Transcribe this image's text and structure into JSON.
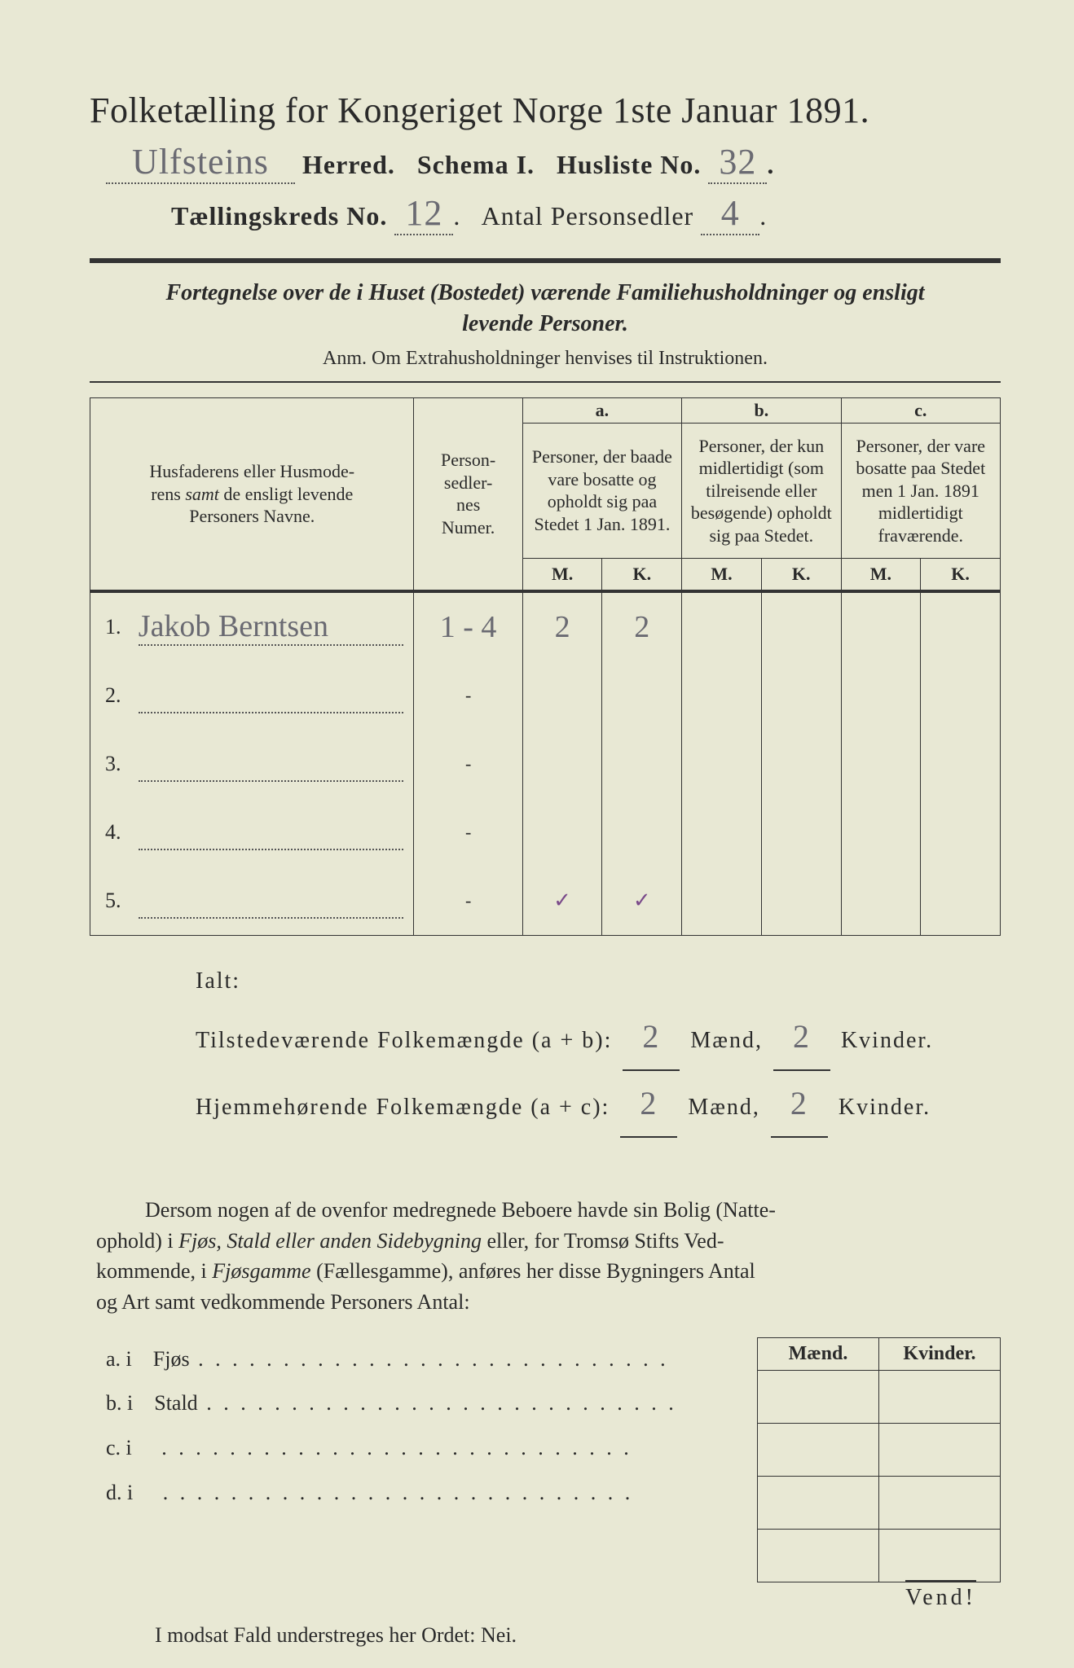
{
  "colors": {
    "paper": "#e8e8d4",
    "ink": "#2a2a2a",
    "handwriting": "#6a6a72",
    "tick": "#7a4a8a"
  },
  "title": "Folketælling for Kongeriget Norge 1ste Januar 1891.",
  "herred_hand": "Ulfsteins",
  "line2": {
    "herred": "Herred.",
    "schema": "Schema I.",
    "husliste": "Husliste No.",
    "husliste_no": "32"
  },
  "line3": {
    "kreds": "Tællingskreds No.",
    "kreds_no": "12",
    "antal": "Antal Personsedler",
    "antal_no": "4"
  },
  "subhead_1": "Fortegnelse over de i Huset (Bostedet) værende Familiehusholdninger og ensligt",
  "subhead_2": "levende Personer.",
  "anm": "Anm.  Om Extrahusholdninger henvises til Instruktionen.",
  "table": {
    "col_name": "Husfaderens eller Husmoderens samt de ensligt levende Personers Navne.",
    "col_num": "Person-\nsedler-\nnes\nNumer.",
    "group_a": "a.",
    "group_a_txt": "Personer, der baade vare bosatte og opholdt sig paa Stedet 1 Jan. 1891.",
    "group_b": "b.",
    "group_b_txt": "Personer, der kun midlertidigt (som tilreisende eller besøgende) opholdt sig paa Stedet.",
    "group_c": "c.",
    "group_c_txt": "Personer, der vare bosatte paa Stedet men 1 Jan. 1891 midlertidigt fraværende.",
    "M": "M.",
    "K": "K.",
    "rows": [
      {
        "n": "1.",
        "name": "Jakob Berntsen",
        "num": "1 - 4",
        "aM": "2",
        "aK": "2",
        "bM": "",
        "bK": "",
        "cM": "",
        "cK": ""
      },
      {
        "n": "2.",
        "name": "",
        "num": "-",
        "aM": "",
        "aK": "",
        "bM": "",
        "bK": "",
        "cM": "",
        "cK": ""
      },
      {
        "n": "3.",
        "name": "",
        "num": "-",
        "aM": "",
        "aK": "",
        "bM": "",
        "bK": "",
        "cM": "",
        "cK": ""
      },
      {
        "n": "4.",
        "name": "",
        "num": "-",
        "aM": "",
        "aK": "",
        "bM": "",
        "bK": "",
        "cM": "",
        "cK": ""
      },
      {
        "n": "5.",
        "name": "",
        "num": "-",
        "aM": "✓",
        "aK": "✓",
        "bM": "",
        "bK": "",
        "cM": "",
        "cK": ""
      }
    ]
  },
  "ialt": {
    "label": "Ialt:",
    "l1a": "Tilstedeværende Folkemængde (a + b):",
    "l2a": "Hjemmehørende Folkemængde (a + c):",
    "maend": "Mænd,",
    "kvinder": "Kvinder.",
    "v1m": "2",
    "v1k": "2",
    "v2m": "2",
    "v2k": "2"
  },
  "para": "Dersom nogen af de ovenfor medregnede Beboere havde sin Bolig (Natteophold) i Fjøs, Stald eller anden Sidebygning eller, for Tromsø Stifts Vedkommende, i Fjøsgamme (Fællesgamme), anføres her disse Bygningers Antal og Art samt vedkommende Personers Antal:",
  "lower": {
    "maend": "Mænd.",
    "kvinder": "Kvinder.",
    "rows": [
      {
        "k": "a.  i",
        "v": "Fjøs"
      },
      {
        "k": "b.  i",
        "v": "Stald"
      },
      {
        "k": "c.  i",
        "v": ""
      },
      {
        "k": "d.  i",
        "v": ""
      }
    ]
  },
  "nei": "I modsat Fald understreges her Ordet: Nei.",
  "vend": "Vend!"
}
